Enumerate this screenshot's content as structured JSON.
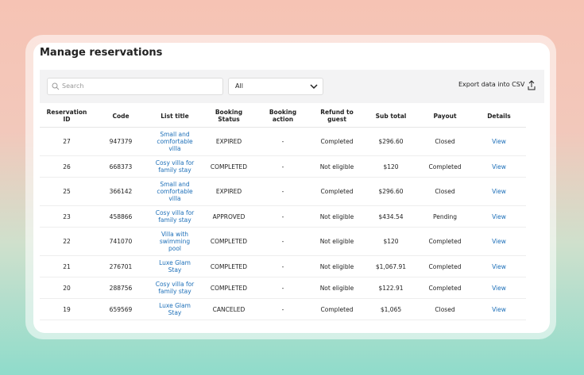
{
  "header": {
    "title": "Manage reservations"
  },
  "toolbar": {
    "search_placeholder": "Search",
    "filter": "All",
    "export": "Export data into CSV"
  },
  "table": {
    "columns": [
      "Reservation ID",
      "Code",
      "List title",
      "Booking Status",
      "Booking action",
      "Refund to guest",
      "Sub total",
      "Payout",
      "Details"
    ],
    "rows": [
      [
        "27",
        "947379",
        "Small and comfortable villa",
        "EXPIRED",
        "-",
        "Completed",
        "$296.60",
        "Closed",
        "View"
      ],
      [
        "26",
        "668373",
        "Cosy villa for family stay",
        "COMPLETED",
        "-",
        "Not eligible",
        "$120",
        "Completed",
        "View"
      ],
      [
        "25",
        "366142",
        "Small and comfortable villa",
        "EXPIRED",
        "-",
        "Completed",
        "$296.60",
        "Closed",
        "View"
      ],
      [
        "23",
        "458866",
        "Cosy villa for family stay",
        "APPROVED",
        "-",
        "Not eligible",
        "$434.54",
        "Pending",
        "View"
      ],
      [
        "22",
        "741070",
        "Villa with swimming pool",
        "COMPLETED",
        "-",
        "Not eligible",
        "$120",
        "Completed",
        "View"
      ],
      [
        "21",
        "276701",
        "Luxe Glam Stay",
        "COMPLETED",
        "-",
        "Not eligible",
        "$1,067.91",
        "Completed",
        "View"
      ],
      [
        "20",
        "288756",
        "Cosy villa for family stay",
        "COMPLETED",
        "-",
        "Not eligible",
        "$122.91",
        "Completed",
        "View"
      ],
      [
        "19",
        "659569",
        "Luxe Glam Stay",
        "CANCELED",
        "-",
        "Completed",
        "$1,065",
        "Closed",
        "View"
      ]
    ]
  }
}
